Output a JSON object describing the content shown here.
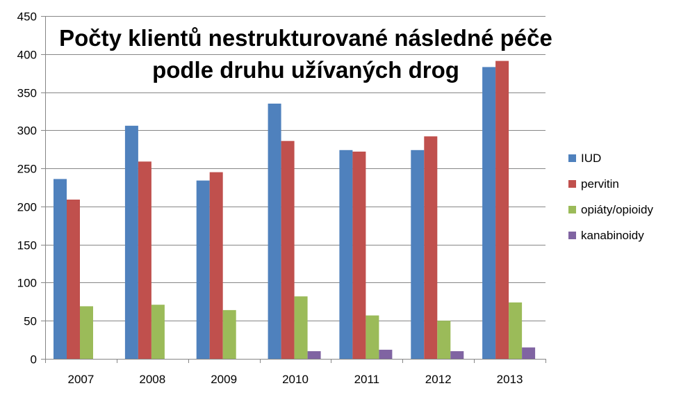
{
  "chart_data": {
    "type": "bar",
    "title": "Počty klientů nestrukturované následné péče podle druhu užívaných drog",
    "title_lines": [
      "Počty klientů nestrukturované následné péče",
      "podle druhu užívaných drog"
    ],
    "xlabel": "",
    "ylabel": "",
    "categories": [
      "2007",
      "2008",
      "2009",
      "2010",
      "2011",
      "2012",
      "2013"
    ],
    "ylim": [
      0,
      450
    ],
    "yticks": [
      0,
      50,
      100,
      150,
      200,
      250,
      300,
      350,
      400,
      450
    ],
    "grid": true,
    "legend_position": "right",
    "series": [
      {
        "name": "IUD",
        "color": "#4F81BD",
        "values": [
          236,
          306,
          234,
          335,
          274,
          274,
          383
        ]
      },
      {
        "name": "pervitin",
        "color": "#C0504D",
        "values": [
          209,
          259,
          245,
          286,
          272,
          292,
          391
        ]
      },
      {
        "name": "opiáty/opioidy",
        "color": "#9BBB59",
        "values": [
          69,
          71,
          64,
          82,
          57,
          50,
          74
        ]
      },
      {
        "name": "kanabinoidy",
        "color": "#8064A2",
        "values": [
          0,
          0,
          0,
          10,
          12,
          10,
          15
        ]
      }
    ]
  }
}
